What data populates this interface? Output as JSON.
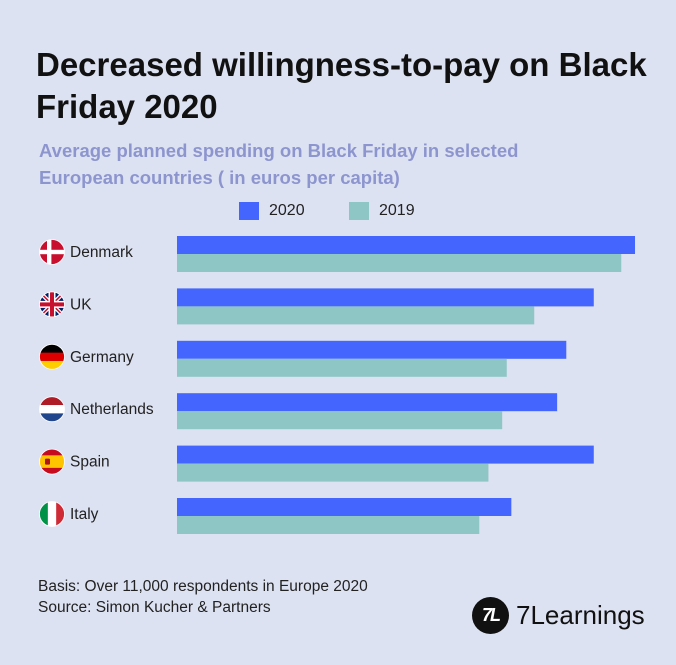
{
  "chart_data": {
    "type": "bar",
    "orientation": "horizontal",
    "title": "Decreased willingness-to-pay on Black Friday 2020",
    "subtitle": "Average planned spending on Black Friday in selected European countries ( in euros per capita)",
    "categories": [
      "Denmark",
      "UK",
      "Germany",
      "Netherlands",
      "Spain",
      "Italy"
    ],
    "series": [
      {
        "name": "2020",
        "color": "#4466ff",
        "values": [
          100,
          91,
          85,
          83,
          91,
          73
        ]
      },
      {
        "name": "2019",
        "color": "#8ec5c5",
        "values": [
          97,
          78,
          72,
          71,
          68,
          66
        ]
      }
    ],
    "flags": [
      "denmark-flag-icon",
      "uk-flag-icon",
      "germany-flag-icon",
      "netherlands-flag-icon",
      "spain-flag-icon",
      "italy-flag-icon"
    ],
    "xlim": [
      0,
      100
    ],
    "grid": false,
    "legend_position": "top"
  },
  "footer": {
    "basis": "Basis: Over 11,000 respondents in Europe 2020",
    "source": "Source: Simon Kucher & Partners"
  },
  "brand": {
    "mark": "7L",
    "name": "7Learnings"
  }
}
